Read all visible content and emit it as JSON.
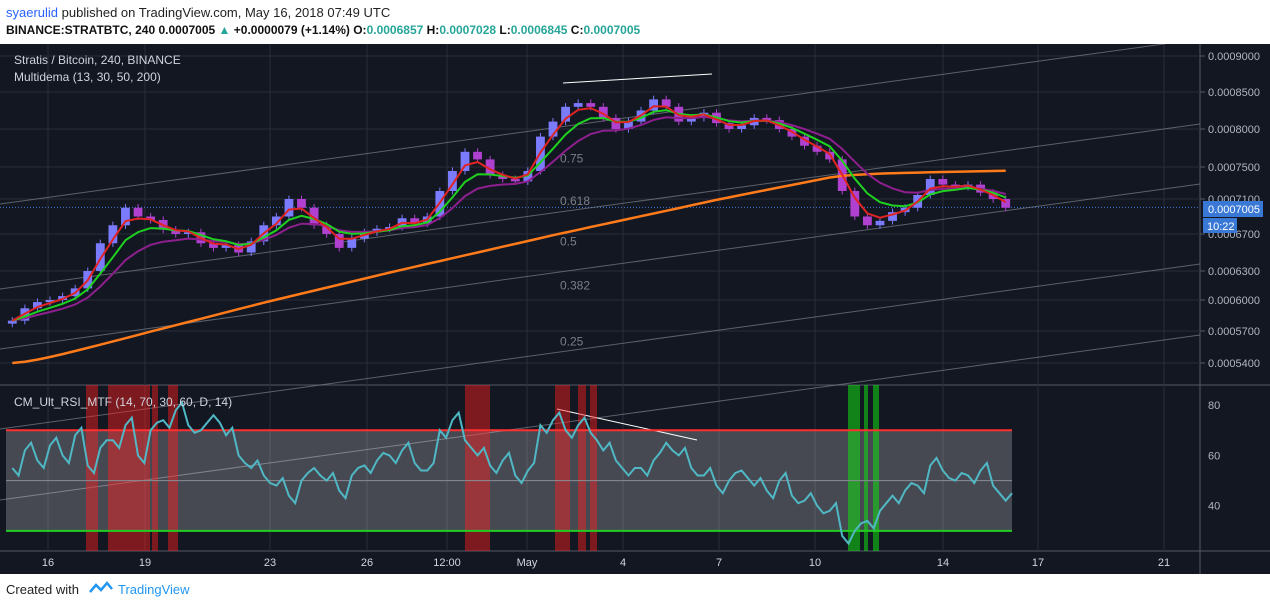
{
  "header": {
    "author": "syaerulid",
    "published": "published on TradingView.com, May 16, 2018 07:49 UTC",
    "symbol": "BINANCE:STRATBTC, 240",
    "last": "0.0007005",
    "change": "+0.0000079 (+1.14%)",
    "o_label": "O:",
    "o": "0.0006857",
    "h_label": "H:",
    "h": "0.0007028",
    "l_label": "L:",
    "l": "0.0006845",
    "c_label": "C:",
    "c": "0.0007005"
  },
  "pane_title": "Stratis / Bitcoin, 240, BINANCE",
  "indicator_main": "Multidema (13, 30, 50, 200)",
  "indicator_rsi": "CM_Ult_RSI_MTF (14, 70, 30, 60, D, 14)",
  "price_tag": "0.0007005",
  "time_tag": "10:22",
  "footer": {
    "created": "Created with",
    "brand": "TradingView"
  },
  "colors": {
    "bg": "#131722",
    "grid": "#2a2e39",
    "up": "#7b7bff",
    "down": "#b040d0",
    "ema13": "#e02424",
    "ema30": "#1fd21f",
    "ema50": "#8e1f8e",
    "ema200": "#ff7b1a",
    "rsi": "#4fb8c4",
    "ob": "#ff3030",
    "os": "#22cc22"
  },
  "chart_data": [
    {
      "type": "candlestick",
      "title": "Stratis / Bitcoin, 240, BINANCE",
      "ylim": [
        0.00052,
        0.00092
      ],
      "y_ticks": [
        "0.0009000",
        "0.0008500",
        "0.0008000",
        "0.0007500",
        "0.0007100",
        "0.0006700",
        "0.0006300",
        "0.0006000",
        "0.0005700",
        "0.0005400"
      ],
      "x_ticks": [
        "16",
        "19",
        "23",
        "26",
        "12:00",
        "May",
        "4",
        "7",
        "10",
        "14",
        "17",
        "21"
      ],
      "fib_levels": [
        {
          "label": "0.75",
          "value": 0.000761
        },
        {
          "label": "0.618",
          "value": 0.000708
        },
        {
          "label": "0.5",
          "value": 0.000662
        },
        {
          "label": "0.382",
          "value": 0.000615
        },
        {
          "label": "0.25",
          "value": 0.00056
        }
      ],
      "close_series": [
        0.00058,
        0.000592,
        0.000598,
        0.0006,
        0.000604,
        0.000612,
        0.00063,
        0.00066,
        0.00068,
        0.0007,
        0.00069,
        0.000686,
        0.000675,
        0.00067,
        0.000672,
        0.00066,
        0.000655,
        0.000658,
        0.00065,
        0.000662,
        0.00068,
        0.00069,
        0.00071,
        0.0007,
        0.00068,
        0.00067,
        0.000655,
        0.000665,
        0.000672,
        0.000676,
        0.000678,
        0.000688,
        0.000682,
        0.00069,
        0.00072,
        0.000745,
        0.00077,
        0.00076,
        0.00074,
        0.000735,
        0.000732,
        0.000745,
        0.00079,
        0.00081,
        0.00083,
        0.000835,
        0.00083,
        0.000815,
        0.0008,
        0.00081,
        0.000825,
        0.00084,
        0.00083,
        0.00081,
        0.000815,
        0.000822,
        0.000808,
        0.0008,
        0.000805,
        0.000815,
        0.000812,
        0.0008,
        0.00079,
        0.000778,
        0.00077,
        0.00076,
        0.00072,
        0.00069,
        0.00068,
        0.000685,
        0.000695,
        0.0007,
        0.000715,
        0.000735,
        0.000728,
        0.000725,
        0.000728,
        0.000718,
        0.00071,
        0.0007
      ]
    },
    {
      "type": "line",
      "title": "CM_Ult_RSI_MTF (14, 70, 30, 60, D, 14)",
      "ylim": [
        22,
        88
      ],
      "y_ticks": [
        "80",
        "60",
        "40"
      ],
      "overbought": 70,
      "oversold": 30,
      "mid": 50,
      "rsi_series": [
        55,
        62,
        58,
        64,
        60,
        68,
        56,
        63,
        66,
        72,
        60,
        70,
        74,
        78,
        72,
        70,
        76,
        68,
        60,
        55,
        52,
        48,
        44,
        50,
        55,
        50,
        46,
        52,
        56,
        58,
        60,
        62,
        57,
        54,
        70,
        74,
        66,
        60,
        56,
        58,
        52,
        54,
        72,
        74,
        70,
        72,
        69,
        62,
        58,
        52,
        55,
        58,
        65,
        60,
        55,
        52,
        48,
        50,
        54,
        48,
        46,
        50,
        44,
        42,
        40,
        38,
        28,
        30,
        34,
        38,
        44,
        46,
        48,
        56,
        54,
        50,
        52,
        54,
        48,
        42
      ]
    }
  ]
}
